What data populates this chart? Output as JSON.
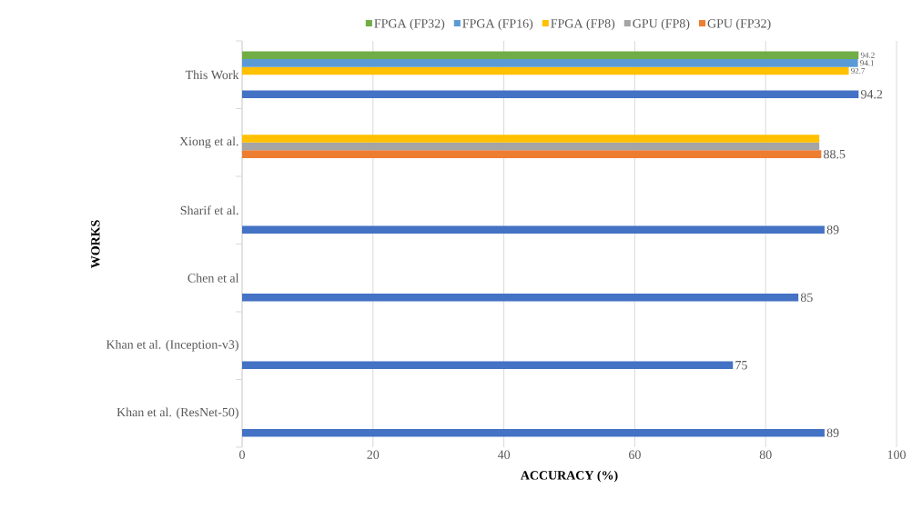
{
  "chart_data": {
    "type": "bar",
    "orientation": "horizontal",
    "xlabel": "ACCURACY (%)",
    "ylabel": "WORKS",
    "categories": [
      "This Work",
      "Xiong et al.",
      "Sharif et al.",
      "Chen et al",
      "Khan et al. (Inception-v3)",
      "Khan et al. (ResNet-50)"
    ],
    "series": [
      {
        "color": "#4472c4",
        "values": [
          94.2,
          null,
          89,
          85,
          75,
          89
        ],
        "value_labels": [
          "94.2",
          null,
          "89",
          "85",
          "75",
          "89"
        ]
      },
      {
        "name": "GPU (FP32)",
        "color": "#ed7d31",
        "values": [
          null,
          88.5,
          null,
          null,
          null,
          null
        ],
        "value_labels": [
          null,
          "88.5",
          null,
          null,
          null,
          null
        ]
      },
      {
        "name": "GPU (FP8)",
        "color": "#a5a5a5",
        "values": [
          null,
          88.2,
          null,
          null,
          null,
          null
        ]
      },
      {
        "name": "FPGA (FP8)",
        "color": "#ffc000",
        "values": [
          92.7,
          88.2,
          null,
          null,
          null,
          null
        ],
        "value_labels": [
          "92.7",
          null,
          null,
          null,
          null,
          null
        ]
      },
      {
        "name": "FPGA (FP16)",
        "color": "#5b9bd5",
        "values": [
          94.1,
          null,
          null,
          null,
          null,
          null
        ],
        "value_labels": [
          "94.1",
          null,
          null,
          null,
          null,
          null
        ]
      },
      {
        "name": "FPGA (FP32)",
        "color": "#70ad47",
        "values": [
          94.2,
          null,
          null,
          null,
          null,
          null
        ],
        "value_labels": [
          "94.2",
          null,
          null,
          null,
          null,
          null
        ]
      }
    ],
    "xlim": [
      0,
      100
    ],
    "xticks": [
      0,
      20,
      40,
      60,
      80,
      100
    ],
    "grid": "x",
    "legend": "top"
  }
}
